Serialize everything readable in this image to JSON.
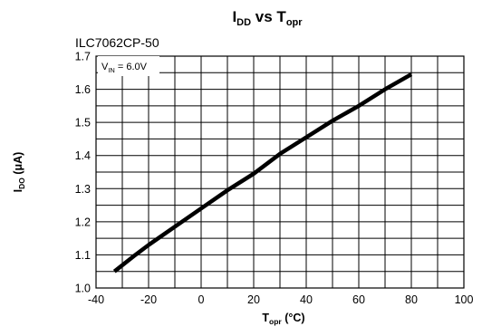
{
  "chart_data": {
    "type": "line",
    "title": {
      "main": "I",
      "sub1": "DD",
      "mid": " vs T",
      "sub2": "opr"
    },
    "part_number": "ILC7062CP-50",
    "condition": {
      "pre": "V",
      "sub": "IN",
      "post": " = 6.0V"
    },
    "xlabel": {
      "main": "T",
      "sub": "opr",
      "post": " (°C)"
    },
    "ylabel": {
      "main": "I",
      "sub": "DO",
      "post": " (μA)"
    },
    "xlim": [
      -40,
      100
    ],
    "ylim": [
      1.0,
      1.7
    ],
    "x_ticks": [
      -40,
      -20,
      0,
      20,
      40,
      60,
      80,
      100
    ],
    "x_tick_labels": [
      "-40",
      "-20",
      "0",
      "20",
      "40",
      "60",
      "80",
      "100"
    ],
    "y_ticks": [
      1.0,
      1.1,
      1.2,
      1.3,
      1.4,
      1.5,
      1.6,
      1.7
    ],
    "y_tick_labels": [
      "1.0",
      "1.1",
      "1.2",
      "1.3",
      "1.4",
      "1.5",
      "1.6",
      "1.7"
    ],
    "grid": {
      "x_step": 10,
      "y_step": 0.05
    },
    "series": [
      {
        "x": [
          -33,
          -25,
          -20,
          -10,
          0,
          10,
          20,
          30,
          40,
          50,
          60,
          70,
          80
        ],
        "y": [
          1.05,
          1.1,
          1.13,
          1.185,
          1.24,
          1.295,
          1.345,
          1.405,
          1.455,
          1.505,
          1.55,
          1.6,
          1.645
        ],
        "color": "#000000"
      }
    ]
  }
}
